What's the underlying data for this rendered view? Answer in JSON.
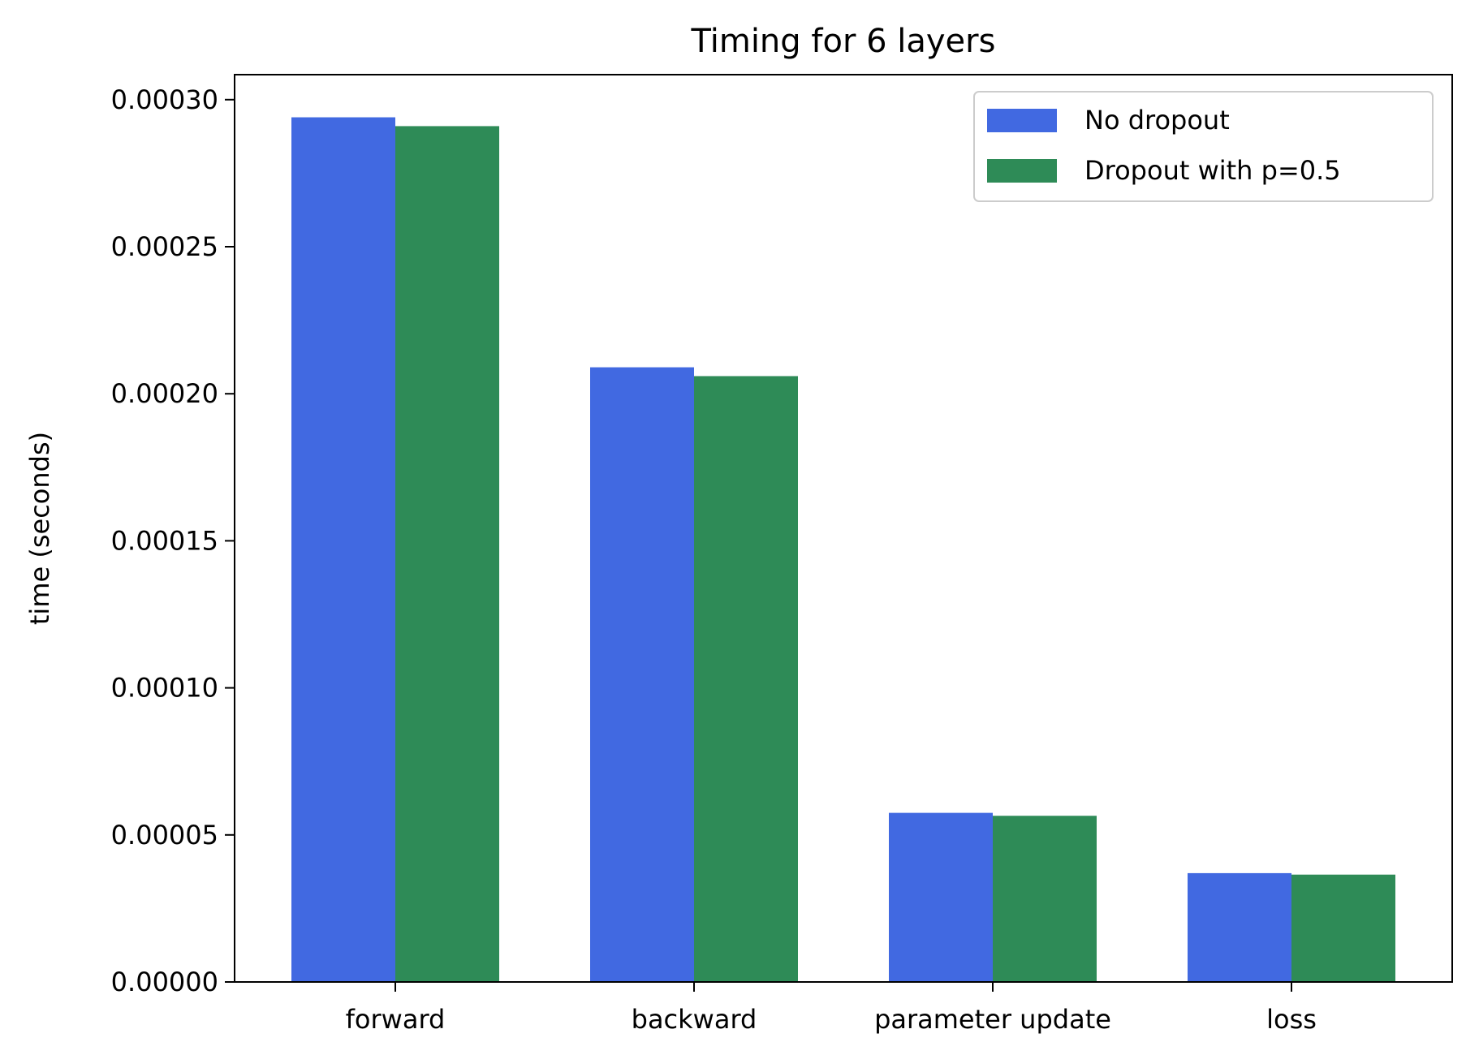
{
  "chart_data": {
    "type": "bar",
    "title": "Timing for 6 layers",
    "xlabel": "",
    "ylabel": "time (seconds)",
    "categories": [
      "forward",
      "backward",
      "parameter update",
      "loss"
    ],
    "series": [
      {
        "name": "No dropout",
        "color": "#4169e1",
        "values": [
          0.000294,
          0.000209,
          5.75e-05,
          3.7e-05
        ]
      },
      {
        "name": "Dropout with p=0.5",
        "color": "#2e8b57",
        "values": [
          0.000291,
          0.000206,
          5.65e-05,
          3.65e-05
        ]
      }
    ],
    "ylim": [
      0,
      0.0003085
    ],
    "yticks": [
      0,
      5e-05,
      0.0001,
      0.00015,
      0.0002,
      0.00025,
      0.0003
    ],
    "ytick_labels": [
      "0.00000",
      "0.00005",
      "0.00010",
      "0.00015",
      "0.00020",
      "0.00025",
      "0.00030"
    ],
    "grid": false,
    "legend_position": "top-right"
  }
}
